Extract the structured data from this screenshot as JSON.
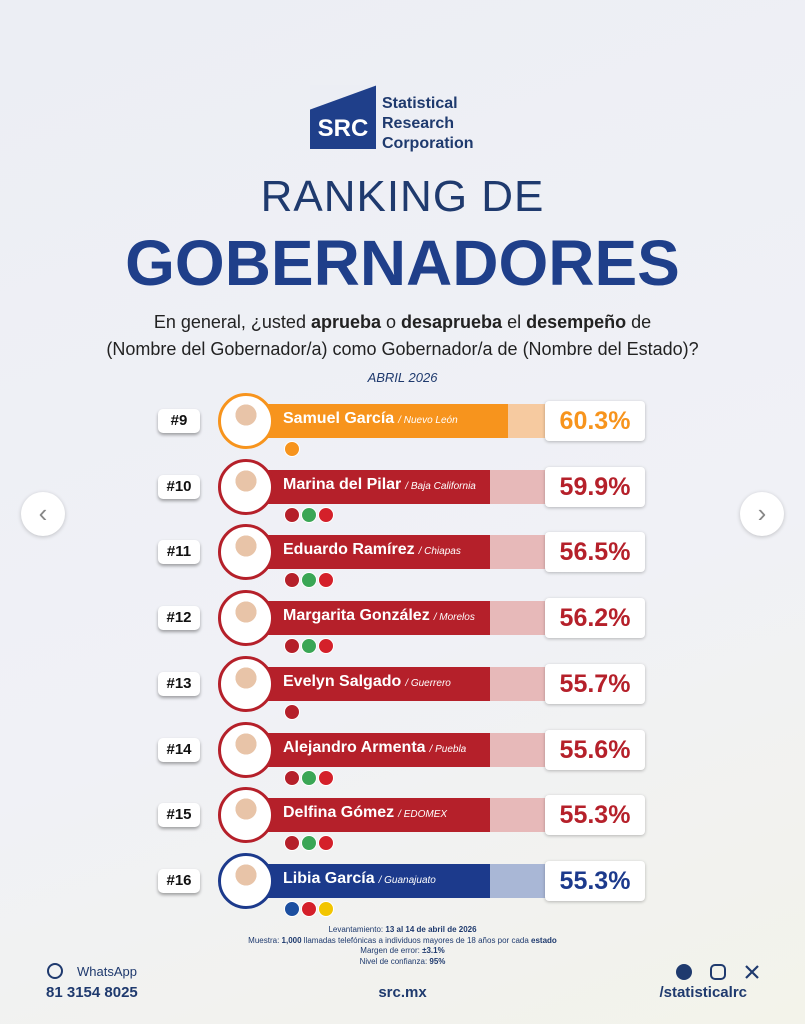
{
  "header": {
    "logo": "SRC",
    "brand": [
      "Statistical",
      "Research",
      "Corporation"
    ],
    "title_top": "RANKING DE",
    "title_main": "GOBERNADORES",
    "question": [
      [
        {
          "text": "En general, ¿usted "
        },
        {
          "text": "aprueba",
          "bold": true
        },
        {
          "text": " o "
        },
        {
          "text": "desaprueba",
          "bold": true
        },
        {
          "text": " el "
        },
        {
          "text": "desempeño",
          "bold": true
        },
        {
          "text": " de"
        }
      ],
      [
        {
          "text": "(Nombre del Gobernador/a) como Gobernador/a de (Nombre del Estado)?"
        }
      ]
    ],
    "date": "ABRIL 2026"
  },
  "ranking": [
    {
      "rank": "#9",
      "name": "Samuel García",
      "state": "/ Nuevo León",
      "value": "60.3%",
      "color": "#f7941d",
      "light": "#f6caa0",
      "badges": [
        "#f7941d"
      ]
    },
    {
      "rank": "#10",
      "name": "Marina del Pilar",
      "state": "/ Baja California",
      "value": "59.9%",
      "color": "#b5202a",
      "light": "#e7b9b9",
      "badges": [
        "#b5202a",
        "#3aa655",
        "#d4202a"
      ]
    },
    {
      "rank": "#11",
      "name": "Eduardo Ramírez",
      "state": "/ Chiapas",
      "value": "56.5%",
      "color": "#b5202a",
      "light": "#e7b9b9",
      "badges": [
        "#b5202a",
        "#3aa655",
        "#d4202a"
      ]
    },
    {
      "rank": "#12",
      "name": "Margarita González",
      "state": "/ Morelos",
      "value": "56.2%",
      "color": "#b5202a",
      "light": "#e7b9b9",
      "badges": [
        "#b5202a",
        "#3aa655",
        "#d4202a"
      ]
    },
    {
      "rank": "#13",
      "name": "Evelyn Salgado",
      "state": "/ Guerrero",
      "value": "55.7%",
      "color": "#b5202a",
      "light": "#e7b9b9",
      "badges": [
        "#b5202a"
      ]
    },
    {
      "rank": "#14",
      "name": "Alejandro Armenta",
      "state": "/ Puebla",
      "value": "55.6%",
      "color": "#b5202a",
      "light": "#e7b9b9",
      "badges": [
        "#b5202a",
        "#3aa655",
        "#d4202a"
      ]
    },
    {
      "rank": "#15",
      "name": "Delfina Gómez",
      "state": "/ EDOMEX",
      "value": "55.3%",
      "color": "#b5202a",
      "light": "#e7b9b9",
      "badges": [
        "#b5202a",
        "#3aa655",
        "#d4202a"
      ]
    },
    {
      "rank": "#16",
      "name": "Libia García",
      "state": "/ Guanajuato",
      "value": "55.3%",
      "color": "#1c3a8c",
      "light": "#a9b7d6",
      "badges": [
        "#1c4fa0",
        "#d4202a",
        "#f2c500"
      ]
    }
  ],
  "notes": [
    [
      {
        "text": "Levantamiento: "
      },
      {
        "text": "13 al 14 de abril de 2026",
        "bold": true
      }
    ],
    [
      {
        "text": "Muestra: "
      },
      {
        "text": "1,000",
        "bold": true
      },
      {
        "text": " llamadas telefónicas a individuos mayores de 18 años por cada "
      },
      {
        "text": "estado",
        "bold": true
      }
    ],
    [
      {
        "text": "Margen de error: "
      },
      {
        "text": "±3.1%",
        "bold": true
      }
    ],
    [
      {
        "text": "Nivel de confianza: "
      },
      {
        "text": "95%",
        "bold": true
      }
    ]
  ],
  "footer": {
    "whatsapp": "WhatsApp",
    "phone": "81 3154 8025",
    "website": "src.mx",
    "social": "/statisticalrc"
  }
}
